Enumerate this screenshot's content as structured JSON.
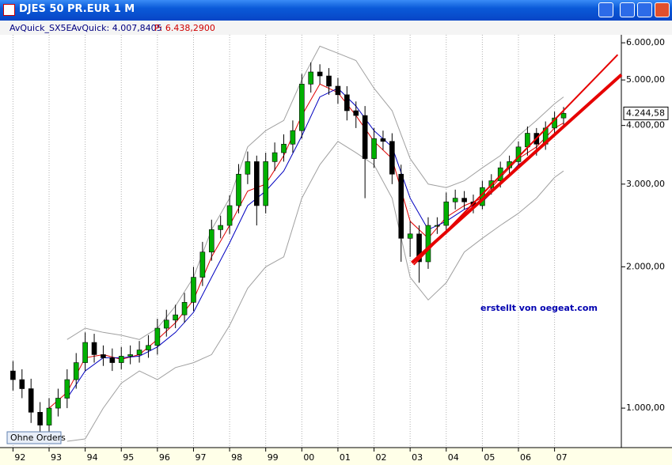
{
  "window_title": "DJES 50 PR.EUR 1 M",
  "info_line": {
    "name": "AvQuick_SX5E",
    "label": "AvQuick: 4.007,8405",
    "price": "P: 6.438,2900"
  },
  "chart_data": {
    "type": "candlestick",
    "x": [
      1992,
      1992.25,
      1992.5,
      1992.75,
      1993,
      1993.25,
      1993.5,
      1993.75,
      1994,
      1994.25,
      1994.5,
      1994.75,
      1995,
      1995.25,
      1995.5,
      1995.75,
      1996,
      1996.25,
      1996.5,
      1996.75,
      1997,
      1997.25,
      1997.5,
      1997.75,
      1998,
      1998.25,
      1998.5,
      1998.75,
      1999,
      1999.25,
      1999.5,
      1999.75,
      2000,
      2000.25,
      2000.5,
      2000.75,
      2001,
      2001.25,
      2001.5,
      2001.75,
      2002,
      2002.25,
      2002.5,
      2002.75,
      2003,
      2003.25,
      2003.5,
      2003.75,
      2004,
      2004.25,
      2004.5,
      2004.75,
      2005,
      2005.25,
      2005.5,
      2005.75,
      2006,
      2006.25,
      2006.5,
      2006.75,
      2007,
      2007.25
    ],
    "open": [
      1200,
      1150,
      1100,
      980,
      920,
      1000,
      1050,
      1150,
      1250,
      1380,
      1300,
      1280,
      1250,
      1290,
      1300,
      1330,
      1360,
      1480,
      1540,
      1580,
      1680,
      1900,
      2150,
      2400,
      2450,
      2700,
      3150,
      3350,
      2700,
      3350,
      3500,
      3650,
      3900,
      4900,
      5200,
      5100,
      4850,
      4650,
      4300,
      4200,
      3400,
      3750,
      3700,
      3150,
      2300,
      2350,
      2050,
      2450,
      2450,
      2750,
      2800,
      2750,
      2700,
      2950,
      3050,
      3250,
      3350,
      3600,
      3850,
      3650,
      3950,
      4150
    ],
    "high": [
      1260,
      1210,
      1155,
      1030,
      1050,
      1100,
      1210,
      1310,
      1450,
      1440,
      1360,
      1340,
      1350,
      1360,
      1390,
      1430,
      1550,
      1620,
      1660,
      1760,
      2000,
      2260,
      2520,
      2570,
      2840,
      3310,
      3520,
      3450,
      3500,
      3680,
      3830,
      4100,
      5150,
      5450,
      5400,
      5300,
      5050,
      4850,
      4500,
      4400,
      3950,
      3900,
      3850,
      3300,
      2500,
      2450,
      2550,
      2550,
      2880,
      2920,
      2900,
      2850,
      3050,
      3150,
      3350,
      3450,
      3700,
      3980,
      3950,
      4080,
      4280,
      4380
    ],
    "low": [
      1090,
      1050,
      930,
      870,
      880,
      960,
      1000,
      1100,
      1200,
      1250,
      1230,
      1200,
      1210,
      1240,
      1250,
      1280,
      1300,
      1420,
      1480,
      1520,
      1610,
      1820,
      2060,
      2300,
      2350,
      2600,
      3000,
      2450,
      2600,
      3200,
      3350,
      3500,
      3750,
      4700,
      4900,
      4650,
      4450,
      4100,
      3950,
      2800,
      3250,
      3550,
      3000,
      2050,
      2100,
      1850,
      1980,
      2350,
      2350,
      2650,
      2650,
      2600,
      2650,
      2850,
      2950,
      3150,
      3250,
      3450,
      3450,
      3550,
      3800,
      4000
    ],
    "close": [
      1150,
      1100,
      980,
      920,
      1000,
      1050,
      1150,
      1250,
      1380,
      1300,
      1280,
      1250,
      1290,
      1300,
      1330,
      1360,
      1480,
      1540,
      1580,
      1680,
      1900,
      2150,
      2400,
      2450,
      2700,
      3150,
      3350,
      2700,
      3350,
      3500,
      3650,
      3900,
      4900,
      5200,
      5100,
      4850,
      4650,
      4300,
      4200,
      3400,
      3750,
      3700,
      3150,
      2300,
      2350,
      2050,
      2450,
      2450,
      2750,
      2800,
      2750,
      2700,
      2950,
      3050,
      3250,
      3350,
      3600,
      3850,
      3650,
      3950,
      4150,
      4244.58
    ],
    "up_color": "#00b000",
    "down_color": "#000000",
    "last_price": {
      "value": 4244.58,
      "label": "4.244,58"
    },
    "lines": [
      {
        "color": "#a0a0a0",
        "x": [
          1993.5,
          1994,
          1994.5,
          1995,
          1995.5,
          1996,
          1996.5,
          1997,
          1997.5,
          1998,
          1998.5,
          1999,
          1999.5,
          2000,
          2000.5,
          2001,
          2001.5,
          2002,
          2002.5,
          2003,
          2003.5,
          2004,
          2004.5,
          2005,
          2005.5,
          2006,
          2006.5,
          2007,
          2007.25
        ],
        "values": [
          1400,
          1480,
          1450,
          1430,
          1400,
          1480,
          1650,
          1900,
          2400,
          2800,
          3600,
          3900,
          4100,
          5000,
          5900,
          5700,
          5500,
          4800,
          4300,
          3400,
          3000,
          2950,
          3050,
          3250,
          3450,
          3800,
          4100,
          4450,
          4600
        ]
      },
      {
        "color": "#a0a0a0",
        "x": [
          1993.5,
          1994,
          1994.5,
          1995,
          1995.5,
          1996,
          1996.5,
          1997,
          1997.5,
          1998,
          1998.5,
          1999,
          1999.5,
          2000,
          2000.5,
          2001,
          2001.5,
          2002,
          2002.5,
          2003,
          2003.5,
          2004,
          2004.5,
          2005,
          2005.5,
          2006,
          2006.5,
          2007,
          2007.25
        ],
        "values": [
          850,
          860,
          1000,
          1130,
          1200,
          1150,
          1220,
          1250,
          1300,
          1500,
          1800,
          2000,
          2100,
          2800,
          3300,
          3700,
          3500,
          3300,
          2800,
          1900,
          1700,
          1850,
          2150,
          2300,
          2450,
          2600,
          2800,
          3100,
          3200
        ]
      },
      {
        "color": "#e00000",
        "x": [
          1993,
          1993.5,
          1994,
          1994.5,
          1995,
          1995.5,
          1996,
          1996.5,
          1997,
          1997.5,
          1998,
          1998.5,
          1999,
          1999.5,
          2000,
          2000.5,
          2001,
          2001.5,
          2002,
          2002.5,
          2003,
          2003.5,
          2004,
          2004.5,
          2005,
          2005.5,
          2006,
          2006.5,
          2007,
          2007.25
        ],
        "values": [
          1000,
          1080,
          1280,
          1300,
          1270,
          1300,
          1400,
          1520,
          1700,
          2100,
          2450,
          2900,
          3000,
          3450,
          4200,
          4900,
          4700,
          4200,
          3700,
          3400,
          2500,
          2300,
          2550,
          2700,
          2800,
          3100,
          3400,
          3600,
          3950,
          4050
        ]
      },
      {
        "color": "#0000c0",
        "x": [
          1993.5,
          1994,
          1994.5,
          1995,
          1995.5,
          1996,
          1996.5,
          1997,
          1997.5,
          1998,
          1998.5,
          1999,
          1999.5,
          2000,
          2000.5,
          2001,
          2001.5,
          2002,
          2002.5,
          2003,
          2003.5,
          2004,
          2004.5,
          2005,
          2005.5,
          2006,
          2006.5,
          2007,
          2007.25
        ],
        "values": [
          1050,
          1200,
          1280,
          1280,
          1290,
          1350,
          1450,
          1600,
          1900,
          2250,
          2700,
          2900,
          3200,
          3800,
          4600,
          4800,
          4400,
          3900,
          3600,
          2800,
          2400,
          2500,
          2650,
          2750,
          3000,
          3300,
          3500,
          3850,
          3950
        ]
      }
    ],
    "trendlines": [
      {
        "color": "#e60000",
        "width": 2,
        "x": [
          2003.1,
          2008.75
        ],
        "values": [
          2020,
          5660
        ]
      },
      {
        "color": "#e60000",
        "width": 4,
        "x": [
          2003.05,
          2008.85
        ],
        "values": [
          2040,
          5130
        ]
      }
    ],
    "annotation": "erstellt von oegeat.com",
    "orders_label": "Ohne Orders",
    "log_scale": true,
    "xlim": [
      1991.75,
      2008.85
    ],
    "ylim": [
      824,
      6240
    ],
    "xticks": [
      {
        "value": 1992,
        "label": "92"
      },
      {
        "value": 1993,
        "label": "93"
      },
      {
        "value": 1994,
        "label": "94"
      },
      {
        "value": 1995,
        "label": "95"
      },
      {
        "value": 1996,
        "label": "96"
      },
      {
        "value": 1997,
        "label": "97"
      },
      {
        "value": 1998,
        "label": "98"
      },
      {
        "value": 1999,
        "label": "99"
      },
      {
        "value": 2000,
        "label": "00"
      },
      {
        "value": 2001,
        "label": "01"
      },
      {
        "value": 2002,
        "label": "02"
      },
      {
        "value": 2003,
        "label": "03"
      },
      {
        "value": 2004,
        "label": "04"
      },
      {
        "value": 2005,
        "label": "05"
      },
      {
        "value": 2006,
        "label": "06"
      },
      {
        "value": 2007,
        "label": "07"
      }
    ],
    "yticks": [
      {
        "value": 1000,
        "label": "1.000,00"
      },
      {
        "value": 2000,
        "label": "2.000,00"
      },
      {
        "value": 3000,
        "label": "3.000,00"
      },
      {
        "value": 4000,
        "label": "4.000,00"
      },
      {
        "value": 5000,
        "label": "5.000,00"
      },
      {
        "value": 6000,
        "label": "6.000,00"
      }
    ],
    "grid": true
  }
}
